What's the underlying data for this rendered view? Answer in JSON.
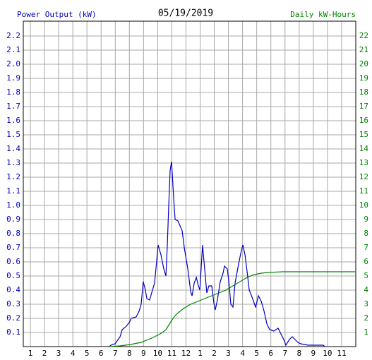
{
  "chart_data": {
    "type": "line",
    "title": "05/19/2019",
    "ylabel": "Power Output (kW)",
    "y2label": "Daily kW-Hours",
    "xlim": [
      0.5,
      24
    ],
    "xticks": [
      1,
      2,
      3,
      4,
      5,
      6,
      7,
      8,
      9,
      10,
      11,
      12,
      {
        "value": 13,
        "label": "1"
      },
      {
        "value": 14,
        "label": "2"
      },
      {
        "value": 15,
        "label": "3"
      },
      {
        "value": 16,
        "label": "4"
      },
      {
        "value": 17,
        "label": "5"
      },
      {
        "value": 18,
        "label": "6"
      },
      {
        "value": 19,
        "label": "7"
      },
      {
        "value": 20,
        "label": "8"
      },
      {
        "value": 21,
        "label": "9"
      },
      {
        "value": 22,
        "label": "10"
      },
      {
        "value": 23,
        "label": "11"
      }
    ],
    "ylim": [
      0,
      2.305
    ],
    "yticks": [
      0.1,
      0.2,
      0.3,
      0.4,
      0.5,
      0.6,
      0.7,
      0.8,
      0.9,
      {
        "value": 1,
        "label": "1.0"
      },
      1.1,
      1.2,
      1.3,
      1.4,
      1.5,
      1.6,
      1.7,
      1.8,
      1.9,
      {
        "value": 2,
        "label": "2.0"
      },
      2.1,
      2.2
    ],
    "y2lim": [
      0,
      23.05
    ],
    "y2ticks": [
      1,
      2,
      3,
      4,
      5,
      6,
      7,
      8,
      9,
      10,
      11,
      12,
      13,
      14,
      15,
      16,
      17,
      18,
      19,
      20,
      21,
      22
    ],
    "grid": true,
    "series": [
      {
        "name": "Power Output (kW)",
        "color": "#0000c0",
        "axis": "y",
        "x": [
          6.59,
          6.69,
          6.99,
          7.34,
          7.49,
          7.74,
          7.99,
          8.13,
          8.48,
          8.68,
          8.83,
          8.98,
          9.13,
          9.23,
          9.43,
          9.63,
          9.78,
          9.93,
          10.03,
          10.23,
          10.43,
          10.58,
          10.68,
          10.78,
          10.88,
          10.98,
          11.13,
          11.23,
          11.43,
          11.73,
          11.88,
          12.13,
          12.33,
          12.43,
          12.58,
          12.73,
          12.88,
          12.98,
          13.17,
          13.32,
          13.47,
          13.62,
          13.82,
          13.97,
          14.07,
          14.22,
          14.42,
          14.62,
          14.72,
          14.92,
          15.02,
          15.17,
          15.32,
          15.47,
          15.67,
          15.87,
          16.02,
          16.17,
          16.32,
          16.47,
          16.67,
          16.92,
          17.12,
          17.32,
          17.52,
          17.72,
          17.92,
          18.21,
          18.51,
          18.71,
          18.91,
          19.06,
          19.31,
          19.51,
          19.71,
          19.91,
          20.11,
          20.61,
          21.01,
          21.71,
          21.81
        ],
        "values": [
          0,
          0.01,
          0.02,
          0.07,
          0.12,
          0.14,
          0.17,
          0.2,
          0.21,
          0.25,
          0.3,
          0.46,
          0.4,
          0.34,
          0.33,
          0.4,
          0.45,
          0.61,
          0.72,
          0.65,
          0.55,
          0.5,
          0.72,
          1.0,
          1.25,
          1.31,
          1.05,
          0.9,
          0.89,
          0.82,
          0.7,
          0.55,
          0.39,
          0.36,
          0.45,
          0.49,
          0.43,
          0.4,
          0.72,
          0.55,
          0.38,
          0.43,
          0.43,
          0.31,
          0.26,
          0.33,
          0.46,
          0.52,
          0.57,
          0.55,
          0.47,
          0.3,
          0.28,
          0.45,
          0.56,
          0.66,
          0.72,
          0.65,
          0.53,
          0.4,
          0.35,
          0.28,
          0.36,
          0.32,
          0.25,
          0.16,
          0.12,
          0.11,
          0.13,
          0.09,
          0.05,
          0.01,
          0.05,
          0.07,
          0.05,
          0.03,
          0.02,
          0.01,
          0.01,
          0.01,
          0
        ]
      },
      {
        "name": "Daily kW-Hours",
        "color": "#008000",
        "axis": "y2",
        "x": [
          6.59,
          7.34,
          8.08,
          8.83,
          9.58,
          10.08,
          10.33,
          10.58,
          10.83,
          11.08,
          11.33,
          11.83,
          12.33,
          12.83,
          13.32,
          13.82,
          14.32,
          14.82,
          15.32,
          15.82,
          16.32,
          16.82,
          17.32,
          17.82,
          18.81,
          19.81,
          21.81,
          24
        ],
        "values": [
          0,
          0.05,
          0.15,
          0.3,
          0.6,
          0.85,
          1.0,
          1.2,
          1.6,
          2.0,
          2.3,
          2.7,
          3.0,
          3.2,
          3.4,
          3.6,
          3.8,
          4.0,
          4.3,
          4.6,
          4.9,
          5.1,
          5.2,
          5.25,
          5.3,
          5.3,
          5.3,
          5.3
        ]
      }
    ]
  }
}
